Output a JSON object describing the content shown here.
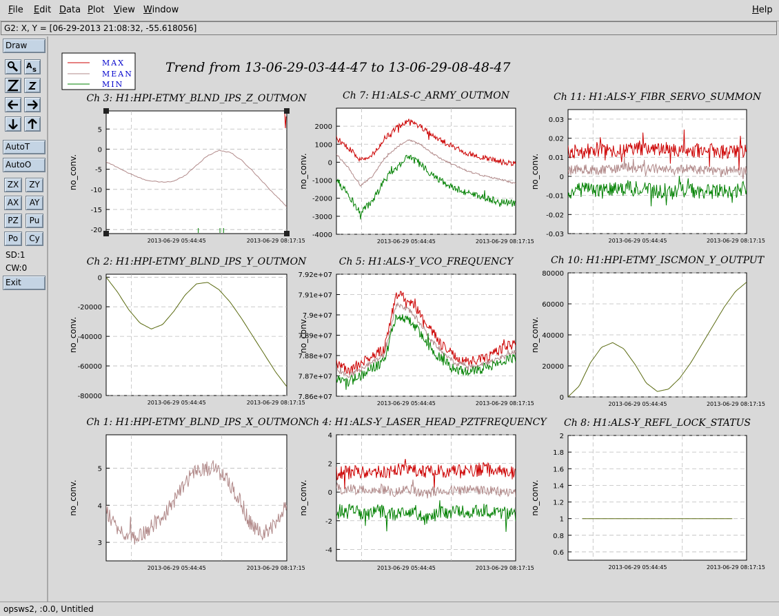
{
  "menu": {
    "file": "File",
    "edit": "Edit",
    "data": "Data",
    "plot": "Plot",
    "view": "View",
    "window": "Window",
    "help": "Help"
  },
  "coord_readout": "G2: X, Y = [06-29-2013 21:08:32, -55.618056]",
  "sidebar": {
    "draw": "Draw",
    "autot": "AutoT",
    "autoo": "AutoO",
    "zx": "ZX",
    "zy": "ZY",
    "ax": "AX",
    "ay": "AY",
    "pz": "PZ",
    "pu": "Pu",
    "po": "Po",
    "cy": "Cy",
    "sd": "SD:1",
    "cw": "CW:0",
    "exit": "Exit",
    "icons": [
      "magnify-icon",
      "text-label-icon",
      "zoom-in-icon",
      "zoom-out-icon",
      "arrow-left-icon",
      "arrow-right-icon",
      "arrow-down-icon",
      "arrow-up-icon"
    ]
  },
  "status": "opsws2, :0.0, Untitled",
  "figure_title": "Trend from 13-06-29-03-44-47 to 13-06-29-08-48-47",
  "legend": [
    {
      "label": "MAX",
      "color": "#cc0000"
    },
    {
      "label": "MEAN",
      "color": "#b08888"
    },
    {
      "label": "MIN",
      "color": "#008000"
    }
  ],
  "chart_data": [
    {
      "type": "line",
      "title": "Ch 3: H1:HPI-ETMY_BLND_IPS_Z_OUTMON",
      "ylabel": "no_conv.",
      "ylim": [
        -21,
        9.5
      ],
      "yticks": [
        -20,
        -15,
        -10,
        -5,
        0,
        5
      ],
      "xticks": [
        "2013-06-29 05:44:45",
        "2013-06-29 08:17:15"
      ],
      "grid": true,
      "kind": "z",
      "series": [
        {
          "name": "MEAN",
          "values": [
            -3.2,
            -4.5,
            -6.0,
            -7.2,
            -8.0,
            -8.2,
            -8.0,
            -6.5,
            -4.0,
            -1.6,
            -0.3,
            -0.8,
            -2.8,
            -5.5,
            -8.5,
            -11.5,
            -14.3
          ]
        }
      ]
    },
    {
      "type": "line",
      "title": "Ch 7: H1:ALS-C_ARMY_OUTMON",
      "ylabel": "no_conv.",
      "ylim": [
        -4000,
        3000
      ],
      "yticks": [
        -4000,
        -3000,
        -2000,
        -1000,
        0,
        1000,
        2000
      ],
      "xticks": [
        "2013-06-29 05:44:45",
        "2013-06-29 08:17:15"
      ],
      "grid": true,
      "kind": "noisy",
      "noise": [
        150,
        45,
        200
      ],
      "series": [
        {
          "name": "MAX",
          "values": [
            1350,
            800,
            100,
            400,
            1300,
            1900,
            2300,
            2000,
            1500,
            1100,
            800,
            500,
            300,
            150,
            0,
            -100
          ]
        },
        {
          "name": "MEAN",
          "values": [
            450,
            -300,
            -1300,
            -800,
            200,
            800,
            1250,
            1000,
            500,
            100,
            -200,
            -500,
            -700,
            -850,
            -1000,
            -1200
          ]
        },
        {
          "name": "MIN",
          "values": [
            -1000,
            -1800,
            -2800,
            -2200,
            -1000,
            -300,
            300,
            -100,
            -700,
            -1100,
            -1500,
            -1700,
            -1900,
            -2100,
            -2200,
            -2300
          ]
        }
      ]
    },
    {
      "type": "line",
      "title": "Ch 11: H1:ALS-Y_FIBR_SERVO_SUMMON",
      "ylabel": "no_conv.",
      "ylim": [
        -0.03,
        0.035
      ],
      "yticks": [
        -0.03,
        -0.02,
        -0.01,
        0,
        0.01,
        0.02,
        0.03
      ],
      "xticks": [
        "2013-06-29 05:44:45",
        "2013-06-29 08:17:15"
      ],
      "grid": true,
      "kind": "noisy",
      "noise": [
        0.004,
        0.0025,
        0.004
      ],
      "series": [
        {
          "name": "MAX",
          "values": [
            0.013,
            0.013,
            0.014,
            0.013,
            0.014,
            0.015,
            0.014,
            0.014,
            0.013,
            0.014,
            0.013,
            0.013,
            0.014
          ]
        },
        {
          "name": "MEAN",
          "values": [
            0.003,
            0.004,
            0.003,
            0.004,
            0.005,
            0.004,
            0.004,
            0.003,
            0.004,
            0.003,
            0.003,
            0.003,
            0.003
          ]
        },
        {
          "name": "MIN",
          "values": [
            -0.008,
            -0.007,
            -0.008,
            -0.007,
            -0.006,
            -0.007,
            -0.008,
            -0.007,
            -0.007,
            -0.008,
            -0.008,
            -0.008,
            -0.006
          ]
        }
      ]
    },
    {
      "type": "line",
      "title": "Ch 2: H1:HPI-ETMY_BLND_IPS_Y_OUTMON",
      "ylabel": "no_conv.",
      "ylim": [
        -80000,
        2000
      ],
      "yticks": [
        -80000,
        -60000,
        -40000,
        -20000,
        0
      ],
      "xticks": [
        "2013-06-29 05:44:45",
        "2013-06-29 08:17:15"
      ],
      "grid": true,
      "kind": "smooth",
      "series": [
        {
          "name": "MEAN",
          "values": [
            0,
            -10000,
            -22000,
            -31000,
            -35000,
            -32000,
            -23000,
            -12000,
            -4500,
            -3500,
            -8500,
            -17000,
            -28000,
            -40000,
            -52000,
            -64000,
            -74000
          ]
        }
      ]
    },
    {
      "type": "line",
      "title": "Ch 5: H1:ALS-Y_VCO_FREQUENCY",
      "ylabel": "no_conv.",
      "ylim": [
        78600000,
        79200000
      ],
      "yticks": [
        78600000,
        78700000,
        78800000,
        78900000,
        79000000,
        79100000,
        79200000
      ],
      "ytick_labels": [
        "7.86e+07",
        "7.87e+07",
        "7.88e+07",
        "7.89e+07",
        "7.9e+07",
        "7.91e+07",
        "7.92e+07"
      ],
      "xticks": [
        "2013-06-29 05:44:45",
        "2013-06-29 08:17:15"
      ],
      "grid": true,
      "kind": "noisy",
      "noise": [
        25000,
        12000,
        25000
      ],
      "series": [
        {
          "name": "MAX",
          "values": [
            78760000,
            78730000,
            78760000,
            78800000,
            78830000,
            79100000,
            79080000,
            79010000,
            78920000,
            78840000,
            78790000,
            78770000,
            78780000,
            78800000,
            78840000,
            78860000
          ]
        },
        {
          "name": "MEAN",
          "values": [
            78730000,
            78700000,
            78730000,
            78770000,
            78800000,
            79050000,
            79030000,
            78960000,
            78870000,
            78810000,
            78760000,
            78750000,
            78750000,
            78770000,
            78800000,
            78820000
          ]
        },
        {
          "name": "MIN",
          "values": [
            78700000,
            78670000,
            78700000,
            78740000,
            78770000,
            79000000,
            78980000,
            78910000,
            78830000,
            78770000,
            78730000,
            78720000,
            78730000,
            78750000,
            78770000,
            78790000
          ]
        }
      ]
    },
    {
      "type": "line",
      "title": "Ch 10: H1:HPI-ETMY_ISCMON_Y_OUTPUT",
      "ylabel": "no_conv.",
      "ylim": [
        0,
        80000
      ],
      "yticks": [
        0,
        20000,
        40000,
        60000,
        80000
      ],
      "xticks": [
        "2013-06-29 05:44:45",
        "2013-06-29 08:17:15"
      ],
      "grid": true,
      "kind": "smooth",
      "series": [
        {
          "name": "MEAN",
          "values": [
            0,
            7000,
            22000,
            32000,
            35000,
            31000,
            21000,
            9000,
            3500,
            5000,
            12000,
            22000,
            34000,
            46000,
            58000,
            68000,
            74000
          ]
        }
      ]
    },
    {
      "type": "line",
      "title": "Ch 1: H1:HPI-ETMY_BLND_IPS_X_OUTMON",
      "ylabel": "no_conv.",
      "ylim": [
        2.5,
        5.9
      ],
      "yticks": [
        3,
        4,
        5
      ],
      "xticks": [
        "2013-06-29 05:44:45",
        "2013-06-29 08:17:15"
      ],
      "grid": true,
      "kind": "noisy",
      "noise": [
        0,
        0.22,
        0
      ],
      "series": [
        {
          "name": "MEAN",
          "values": [
            3.8,
            3.4,
            3.1,
            3.2,
            3.5,
            3.8,
            4.3,
            4.8,
            5.0,
            5.0,
            4.7,
            4.2,
            3.5,
            3.2,
            3.5,
            4.0
          ]
        }
      ]
    },
    {
      "type": "line",
      "title": "Ch 4: H1:ALS-Y_LASER_HEAD_PZTFREQUENCY",
      "ylabel": "no_conv.",
      "ylim": [
        -4.8,
        4
      ],
      "yticks": [
        -4,
        -2,
        0,
        2,
        4
      ],
      "xticks": [
        "2013-06-29 05:44:45",
        "2013-06-29 08:17:15"
      ],
      "grid": true,
      "kind": "noisy",
      "noise": [
        0.5,
        0.35,
        0.5
      ],
      "series": [
        {
          "name": "MAX",
          "values": [
            1.3,
            1.4,
            1.5,
            1.4,
            1.5,
            1.6,
            1.4,
            1.5,
            1.4,
            1.5,
            1.6,
            1.4,
            1.3
          ]
        },
        {
          "name": "MEAN",
          "values": [
            0.2,
            0.2,
            0.1,
            0.2,
            0.0,
            0.2,
            -0.2,
            0.1,
            0.1,
            0.2,
            0.1,
            0.0,
            0.0
          ]
        },
        {
          "name": "MIN",
          "values": [
            -1.4,
            -1.3,
            -1.5,
            -1.3,
            -1.5,
            -1.4,
            -2.0,
            -1.4,
            -1.3,
            -1.4,
            -1.3,
            -1.4,
            -1.6
          ]
        }
      ]
    },
    {
      "type": "line",
      "title": "Ch 8: H1:ALS-Y_REFL_LOCK_STATUS",
      "ylabel": "no_conv.",
      "ylim": [
        0.5,
        2
      ],
      "yticks": [
        0.6,
        0.8,
        1,
        1.2,
        1.4,
        1.6,
        1.8,
        2
      ],
      "xticks": [
        "2013-06-29 05:44:45",
        "2013-06-29 08:17:15"
      ],
      "grid": true,
      "kind": "smooth",
      "series": [
        {
          "name": "MEAN",
          "values": [
            1,
            1,
            1,
            1,
            1,
            1,
            1,
            1
          ]
        }
      ]
    }
  ]
}
